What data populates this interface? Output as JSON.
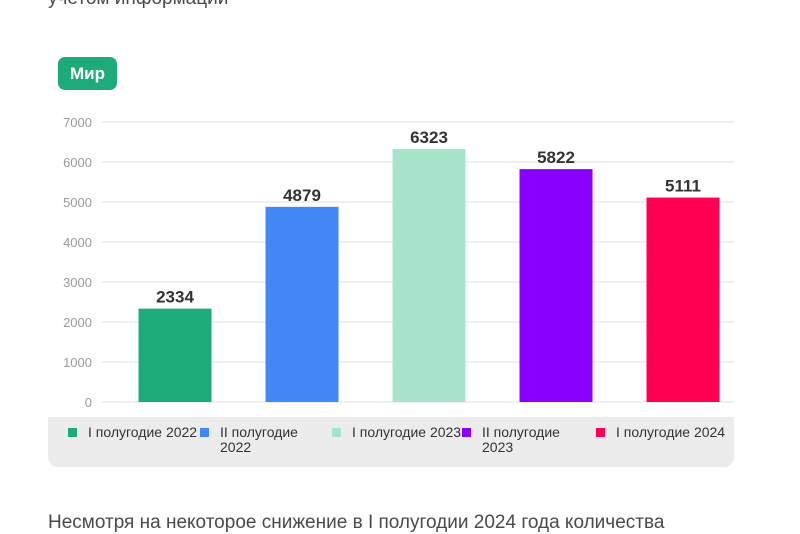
{
  "page": {
    "top_text": "учетом информации",
    "bottom_text": "Несмотря на некоторое снижение в I полугодии 2024 года количества"
  },
  "chart_data": {
    "type": "bar",
    "title": "Мир",
    "categories": [
      "I полугодие 2022",
      "II полугодие 2022",
      "I полугодие 2023",
      "II полугодие 2023",
      "I полугодие 2024"
    ],
    "values": [
      2334,
      4879,
      6323,
      5822,
      5111
    ],
    "data_labels": [
      "2334",
      "4879",
      "6323",
      "5822",
      "5111"
    ],
    "colors": [
      "#1eab7a",
      "#4287f5",
      "#a8e4cc",
      "#8a00ff",
      "#ff0055"
    ],
    "ylim": [
      0,
      7000
    ],
    "yticks": [
      0,
      1000,
      2000,
      3000,
      4000,
      5000,
      6000,
      7000
    ],
    "grid": true,
    "legend_position": "bottom"
  }
}
